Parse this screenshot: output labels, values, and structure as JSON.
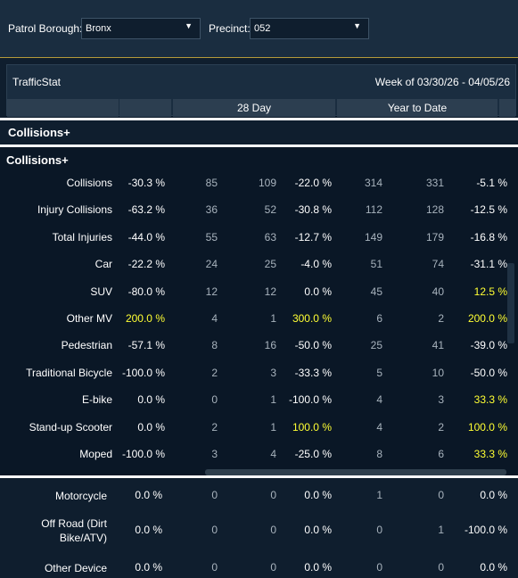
{
  "filters": {
    "borough_label": "Patrol Borough:",
    "borough_value": "Bronx",
    "precinct_label": "Precinct:",
    "precinct_value": "052"
  },
  "header": {
    "title": "TrafficStat",
    "week": "Week of 03/30/26 - 04/05/26",
    "col_28day": "28 Day",
    "col_ytd": "Year to Date"
  },
  "section1": {
    "title": "Collisions+"
  },
  "section2": {
    "title": "Collisions+",
    "rows": [
      {
        "label": "Collisions",
        "v": [
          "-30.3 %",
          "85",
          "109",
          "-22.0 %",
          "314",
          "331",
          "-5.1 %"
        ],
        "hl": [
          0,
          0,
          0,
          0,
          0,
          0,
          0
        ]
      },
      {
        "label": "Injury Collisions",
        "v": [
          "-63.2 %",
          "36",
          "52",
          "-30.8 %",
          "112",
          "128",
          "-12.5 %"
        ],
        "hl": [
          0,
          0,
          0,
          0,
          0,
          0,
          0
        ]
      },
      {
        "label": "Total Injuries",
        "v": [
          "-44.0 %",
          "55",
          "63",
          "-12.7 %",
          "149",
          "179",
          "-16.8 %"
        ],
        "hl": [
          0,
          0,
          0,
          0,
          0,
          0,
          0
        ]
      },
      {
        "label": "Car",
        "v": [
          "-22.2 %",
          "24",
          "25",
          "-4.0 %",
          "51",
          "74",
          "-31.1 %"
        ],
        "hl": [
          0,
          0,
          0,
          0,
          0,
          0,
          0
        ]
      },
      {
        "label": "SUV",
        "v": [
          "-80.0 %",
          "12",
          "12",
          "0.0 %",
          "45",
          "40",
          "12.5 %"
        ],
        "hl": [
          0,
          0,
          0,
          0,
          0,
          0,
          1
        ]
      },
      {
        "label": "Other MV",
        "v": [
          "200.0 %",
          "4",
          "1",
          "300.0 %",
          "6",
          "2",
          "200.0 %"
        ],
        "hl": [
          1,
          0,
          0,
          1,
          0,
          0,
          1
        ]
      },
      {
        "label": "Pedestrian",
        "v": [
          "-57.1 %",
          "8",
          "16",
          "-50.0 %",
          "25",
          "41",
          "-39.0 %"
        ],
        "hl": [
          0,
          0,
          0,
          0,
          0,
          0,
          0
        ]
      },
      {
        "label": "Traditional Bicycle",
        "v": [
          "-100.0 %",
          "2",
          "3",
          "-33.3 %",
          "5",
          "10",
          "-50.0 %"
        ],
        "hl": [
          0,
          0,
          0,
          0,
          0,
          0,
          0
        ]
      },
      {
        "label": "E-bike",
        "v": [
          "0.0 %",
          "0",
          "1",
          "-100.0 %",
          "4",
          "3",
          "33.3 %"
        ],
        "hl": [
          0,
          0,
          0,
          0,
          0,
          0,
          1
        ]
      },
      {
        "label": "Stand-up Scooter",
        "v": [
          "0.0 %",
          "2",
          "1",
          "100.0 %",
          "4",
          "2",
          "100.0 %"
        ],
        "hl": [
          0,
          0,
          0,
          1,
          0,
          0,
          1
        ]
      },
      {
        "label": "Moped",
        "v": [
          "-100.0 %",
          "3",
          "4",
          "-25.0 %",
          "8",
          "6",
          "33.3 %"
        ],
        "hl": [
          0,
          0,
          0,
          0,
          0,
          0,
          1
        ]
      }
    ]
  },
  "section3": {
    "rows": [
      {
        "label": "Motorcycle",
        "v": [
          "0.0 %",
          "0",
          "0",
          "0.0 %",
          "1",
          "0",
          "0.0 %"
        ]
      },
      {
        "label": "Off Road (Dirt\nBike/ATV)",
        "v": [
          "0.0 %",
          "0",
          "0",
          "0.0 %",
          "0",
          "1",
          "-100.0 %"
        ]
      },
      {
        "label": "Other Device",
        "v": [
          "0.0 %",
          "0",
          "0",
          "0.0 %",
          "0",
          "0",
          "0.0 %"
        ]
      }
    ]
  }
}
